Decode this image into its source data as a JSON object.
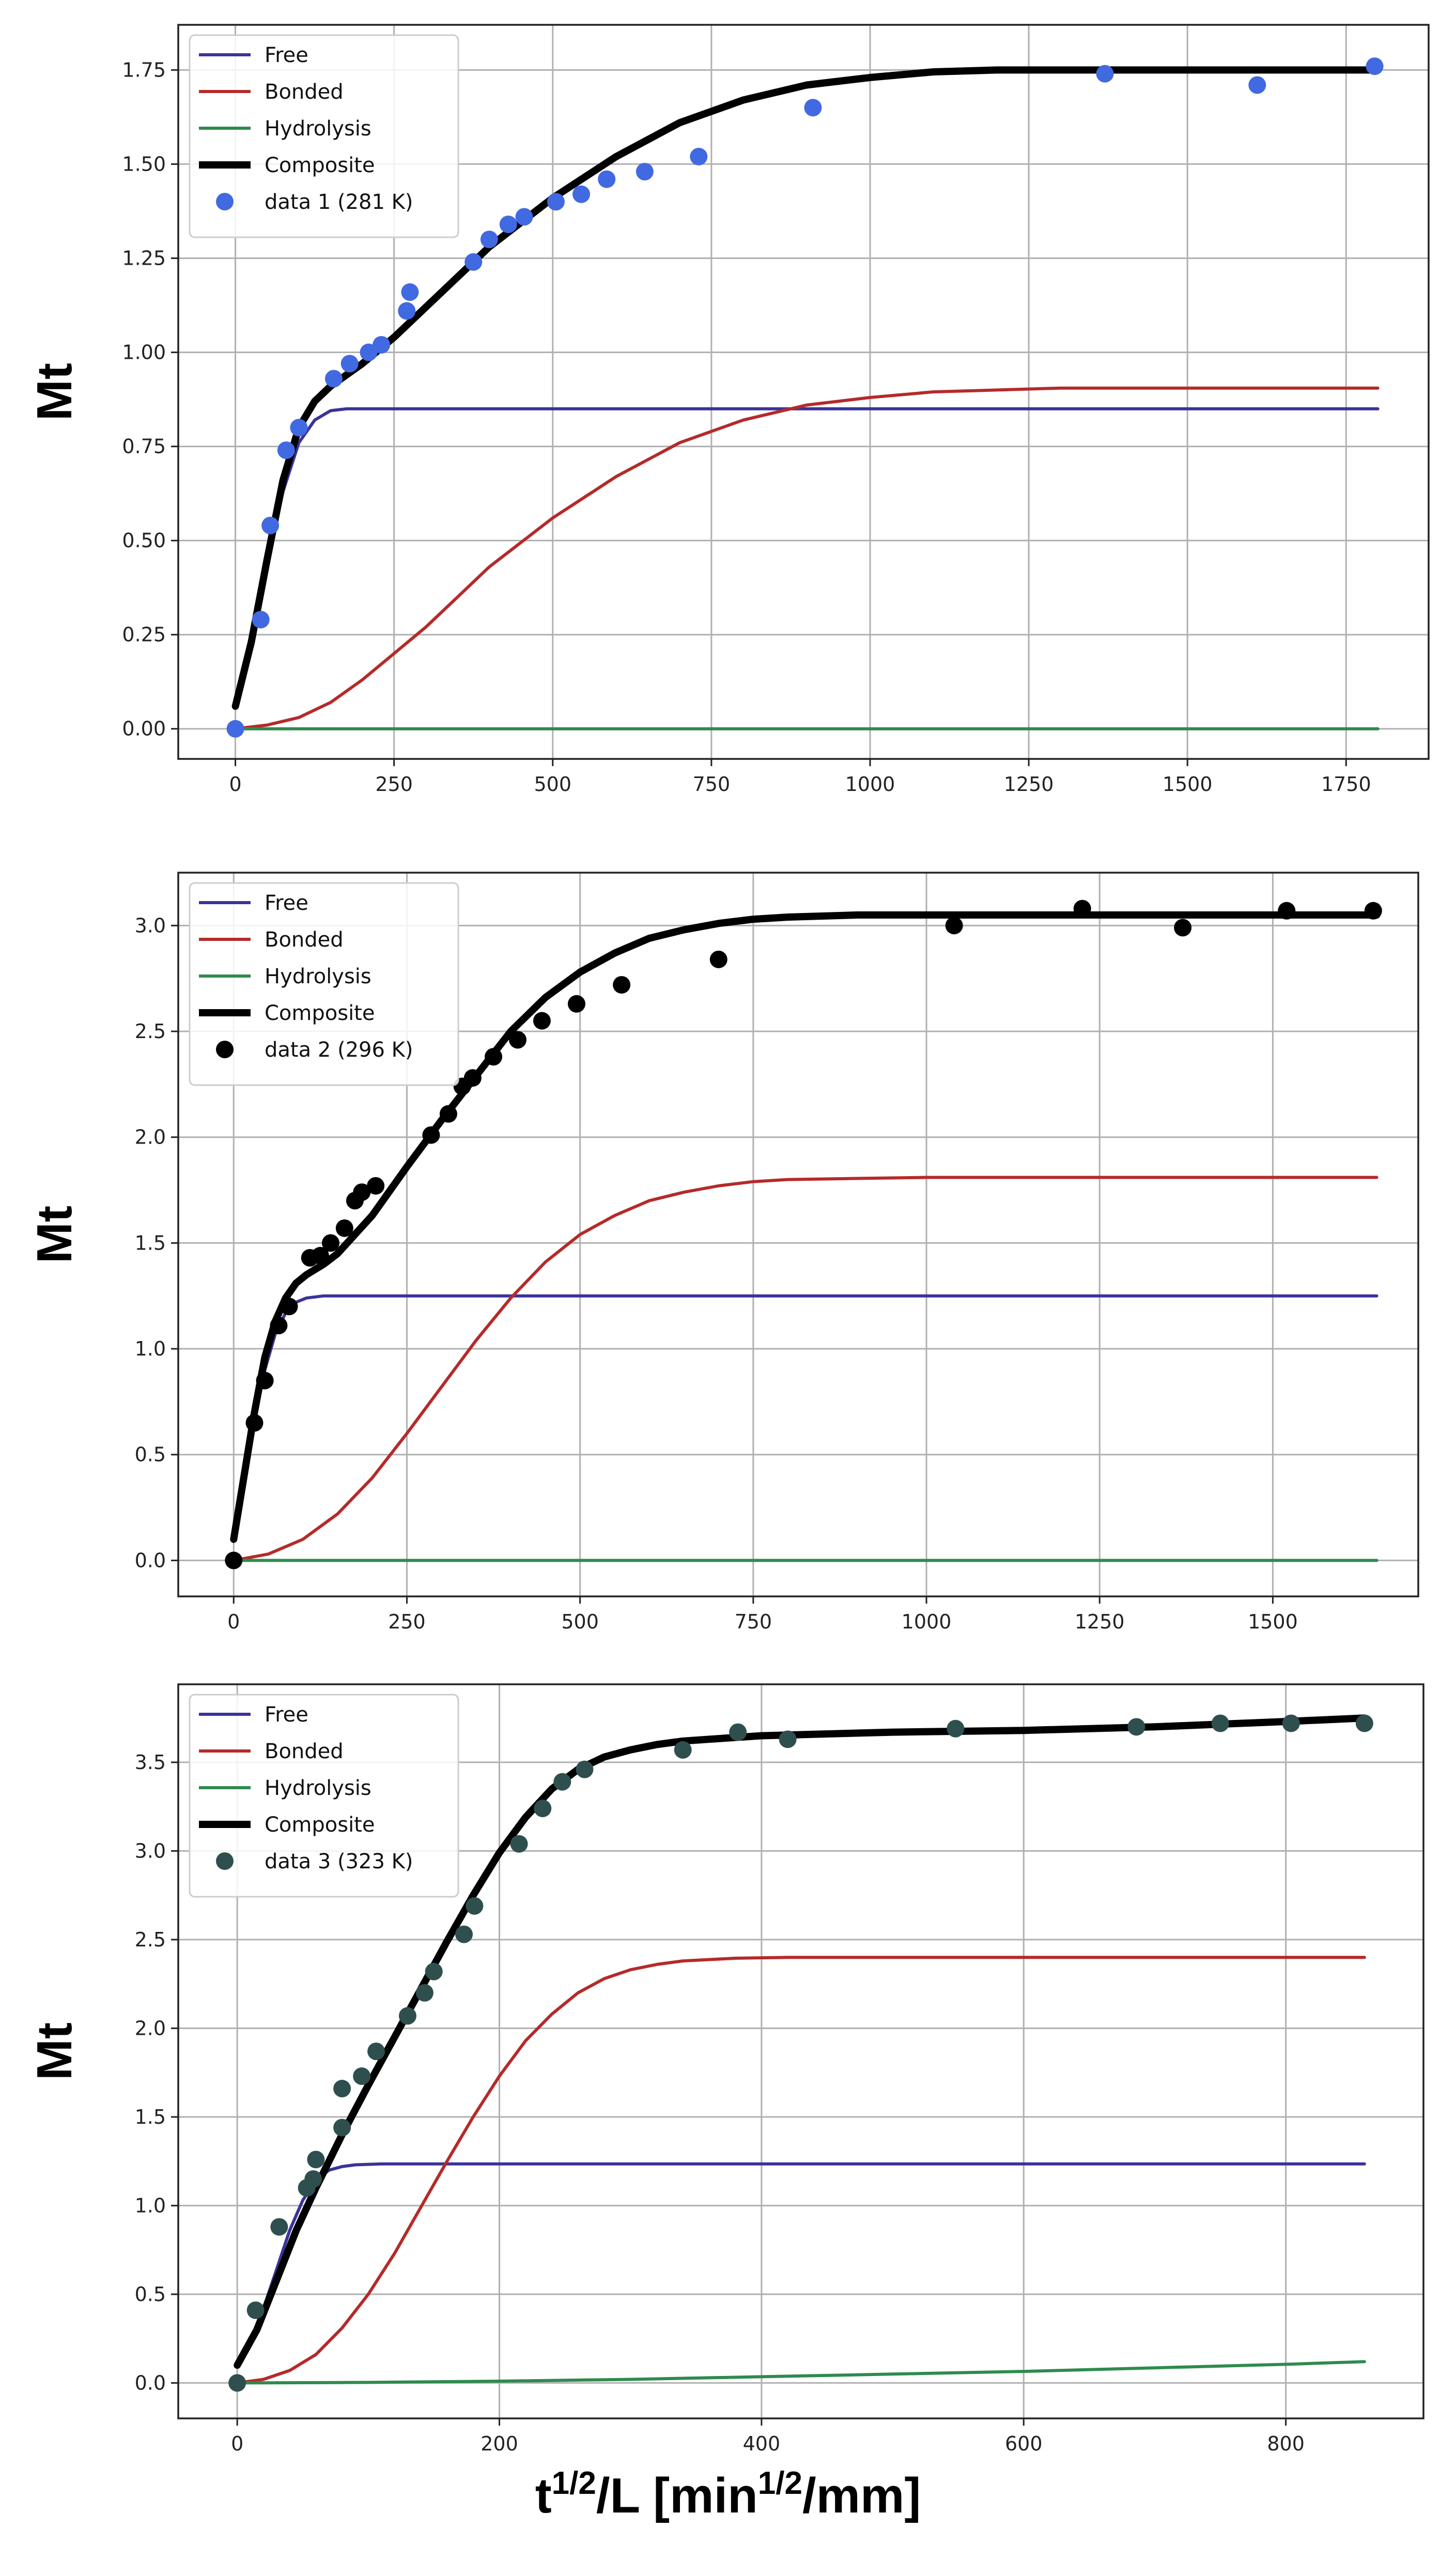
{
  "figure": {
    "x_label": {
      "base": "t",
      "sup1": "1/2",
      "mid": "/L [min",
      "sup2": "1/2",
      "end": "/mm]"
    }
  },
  "colors": {
    "free": "#3b3399",
    "bonded": "#b52a2a",
    "hydrolysis": "#2e8a4e",
    "composite": "#000000"
  },
  "chart_data": [
    {
      "type": "line",
      "ylabel": "Mt",
      "xlim": [
        -90,
        1880
      ],
      "ylim": [
        -0.08,
        1.87
      ],
      "xticks": [
        0,
        250,
        500,
        750,
        1000,
        1250,
        1500,
        1750
      ],
      "yticks": [
        0.0,
        0.25,
        0.5,
        0.75,
        1.0,
        1.25,
        1.5,
        1.75
      ],
      "ytick_decimals": 2,
      "legend": [
        "Free",
        "Bonded",
        "Hydrolysis",
        "Composite",
        "data 1 (281 K)"
      ],
      "legend_position": "top-left",
      "marker_color": "#4169e1",
      "series": [
        {
          "name": "Free",
          "x": [
            0,
            25,
            50,
            75,
            100,
            125,
            150,
            175,
            200,
            300,
            500,
            1000,
            1500,
            1800
          ],
          "y": [
            0.06,
            0.22,
            0.44,
            0.63,
            0.76,
            0.82,
            0.845,
            0.85,
            0.85,
            0.85,
            0.85,
            0.85,
            0.85,
            0.85
          ]
        },
        {
          "name": "Bonded",
          "x": [
            0,
            50,
            100,
            150,
            200,
            250,
            300,
            350,
            400,
            500,
            600,
            700,
            800,
            900,
            1000,
            1100,
            1200,
            1300,
            1500,
            1800
          ],
          "y": [
            0.0,
            0.01,
            0.03,
            0.07,
            0.13,
            0.2,
            0.27,
            0.35,
            0.43,
            0.56,
            0.67,
            0.76,
            0.82,
            0.86,
            0.88,
            0.895,
            0.9,
            0.905,
            0.905,
            0.905
          ]
        },
        {
          "name": "Hydrolysis",
          "x": [
            0,
            1800
          ],
          "y": [
            0.0,
            0.0
          ]
        },
        {
          "name": "Composite",
          "x": [
            0,
            25,
            50,
            75,
            100,
            125,
            150,
            200,
            250,
            300,
            350,
            400,
            500,
            600,
            700,
            800,
            900,
            1000,
            1100,
            1200,
            1300,
            1500,
            1800
          ],
          "y": [
            0.06,
            0.23,
            0.45,
            0.66,
            0.8,
            0.87,
            0.91,
            0.97,
            1.04,
            1.12,
            1.2,
            1.28,
            1.41,
            1.52,
            1.61,
            1.67,
            1.71,
            1.73,
            1.745,
            1.75,
            1.75,
            1.75,
            1.75
          ]
        },
        {
          "name": "data 1 (281 K)",
          "kind": "scatter",
          "x": [
            0,
            40,
            55,
            80,
            100,
            155,
            180,
            210,
            230,
            270,
            275,
            375,
            400,
            430,
            455,
            505,
            545,
            585,
            645,
            730,
            910,
            1370,
            1610,
            1795
          ],
          "y": [
            0.0,
            0.29,
            0.54,
            0.74,
            0.8,
            0.93,
            0.97,
            1.0,
            1.02,
            1.11,
            1.16,
            1.24,
            1.3,
            1.34,
            1.36,
            1.4,
            1.42,
            1.46,
            1.48,
            1.52,
            1.65,
            1.74,
            1.71,
            1.76
          ]
        }
      ]
    },
    {
      "type": "line",
      "ylabel": "Mt",
      "xlim": [
        -80,
        1710
      ],
      "ylim": [
        -0.17,
        3.25
      ],
      "xticks": [
        0,
        250,
        500,
        750,
        1000,
        1250,
        1500
      ],
      "yticks": [
        0.0,
        0.5,
        1.0,
        1.5,
        2.0,
        2.5,
        3.0
      ],
      "ytick_decimals": 1,
      "legend": [
        "Free",
        "Bonded",
        "Hydrolysis",
        "Composite",
        "data 2 (296 K)"
      ],
      "legend_position": "top-left",
      "marker_color": "#000000",
      "series": [
        {
          "name": "Free",
          "x": [
            0,
            15,
            30,
            45,
            60,
            75,
            90,
            105,
            130,
            200,
            500,
            1000,
            1650
          ],
          "y": [
            0.1,
            0.38,
            0.66,
            0.9,
            1.07,
            1.17,
            1.22,
            1.24,
            1.25,
            1.25,
            1.25,
            1.25,
            1.25
          ]
        },
        {
          "name": "Bonded",
          "x": [
            0,
            50,
            100,
            150,
            200,
            250,
            300,
            350,
            400,
            450,
            500,
            550,
            600,
            650,
            700,
            750,
            800,
            900,
            1000,
            1200,
            1650
          ],
          "y": [
            0.0,
            0.03,
            0.1,
            0.22,
            0.39,
            0.6,
            0.82,
            1.04,
            1.24,
            1.41,
            1.54,
            1.63,
            1.7,
            1.74,
            1.77,
            1.79,
            1.8,
            1.805,
            1.81,
            1.81,
            1.81
          ]
        },
        {
          "name": "Hydrolysis",
          "x": [
            0,
            1650
          ],
          "y": [
            0.0,
            0.0
          ]
        },
        {
          "name": "Composite",
          "x": [
            0,
            15,
            30,
            45,
            60,
            75,
            90,
            105,
            130,
            150,
            200,
            250,
            300,
            350,
            400,
            450,
            500,
            550,
            600,
            650,
            700,
            750,
            800,
            900,
            1000,
            1200,
            1650
          ],
          "y": [
            0.1,
            0.4,
            0.7,
            0.96,
            1.13,
            1.24,
            1.31,
            1.35,
            1.4,
            1.45,
            1.63,
            1.86,
            2.08,
            2.29,
            2.5,
            2.66,
            2.78,
            2.87,
            2.94,
            2.98,
            3.01,
            3.03,
            3.04,
            3.05,
            3.05,
            3.05,
            3.05
          ]
        },
        {
          "name": "data 2 (296 K)",
          "kind": "scatter",
          "x": [
            0,
            30,
            45,
            65,
            80,
            110,
            125,
            140,
            160,
            175,
            185,
            205,
            285,
            310,
            330,
            345,
            375,
            410,
            445,
            495,
            560,
            700,
            1040,
            1225,
            1370,
            1520,
            1645
          ],
          "y": [
            0.0,
            0.65,
            0.85,
            1.11,
            1.2,
            1.43,
            1.44,
            1.5,
            1.57,
            1.7,
            1.74,
            1.77,
            2.01,
            2.11,
            2.24,
            2.28,
            2.38,
            2.46,
            2.55,
            2.63,
            2.72,
            2.84,
            3.0,
            3.08,
            2.99,
            3.07,
            3.07
          ]
        }
      ]
    },
    {
      "type": "line",
      "ylabel": "Mt",
      "xlim": [
        -45,
        905
      ],
      "ylim": [
        -0.2,
        3.94
      ],
      "xticks": [
        0,
        200,
        400,
        600,
        800
      ],
      "yticks": [
        0.0,
        0.5,
        1.0,
        1.5,
        2.0,
        2.5,
        3.0,
        3.5
      ],
      "ytick_decimals": 1,
      "legend": [
        "Free",
        "Bonded",
        "Hydrolysis",
        "Composite",
        "data 3 (323 K)"
      ],
      "legend_position": "top-left",
      "marker_color": "#2f4f4f",
      "series": [
        {
          "name": "Free",
          "x": [
            0,
            10,
            20,
            30,
            40,
            50,
            60,
            70,
            80,
            90,
            110,
            150,
            300,
            600,
            860
          ],
          "y": [
            0.1,
            0.22,
            0.42,
            0.64,
            0.86,
            1.03,
            1.14,
            1.2,
            1.22,
            1.23,
            1.235,
            1.235,
            1.235,
            1.235,
            1.235
          ]
        },
        {
          "name": "Bonded",
          "x": [
            0,
            20,
            40,
            60,
            80,
            100,
            120,
            140,
            160,
            180,
            200,
            220,
            240,
            260,
            280,
            300,
            320,
            340,
            380,
            420,
            500,
            860
          ],
          "y": [
            0.0,
            0.02,
            0.07,
            0.16,
            0.31,
            0.5,
            0.73,
            0.99,
            1.25,
            1.5,
            1.73,
            1.93,
            2.08,
            2.2,
            2.28,
            2.33,
            2.36,
            2.38,
            2.395,
            2.4,
            2.4,
            2.4
          ]
        },
        {
          "name": "Hydrolysis",
          "x": [
            0,
            100,
            200,
            300,
            400,
            500,
            600,
            700,
            800,
            860
          ],
          "y": [
            0.0,
            0.003,
            0.01,
            0.02,
            0.035,
            0.05,
            0.065,
            0.085,
            0.105,
            0.12
          ]
        },
        {
          "name": "Composite",
          "x": [
            0,
            15,
            30,
            45,
            60,
            80,
            100,
            120,
            140,
            160,
            180,
            200,
            220,
            240,
            260,
            280,
            300,
            320,
            340,
            360,
            380,
            400,
            450,
            500,
            600,
            700,
            800,
            860
          ],
          "y": [
            0.1,
            0.3,
            0.58,
            0.86,
            1.1,
            1.4,
            1.68,
            1.95,
            2.22,
            2.49,
            2.75,
            2.99,
            3.19,
            3.35,
            3.46,
            3.53,
            3.57,
            3.6,
            3.62,
            3.63,
            3.64,
            3.65,
            3.66,
            3.67,
            3.68,
            3.7,
            3.73,
            3.75
          ]
        },
        {
          "name": "data 3 (323 K)",
          "kind": "scatter",
          "x": [
            0,
            14,
            32,
            53,
            58,
            60,
            80,
            80,
            95,
            106,
            130,
            143,
            150,
            173,
            181,
            215,
            233,
            248,
            265,
            340,
            382,
            420,
            548,
            686,
            750,
            804,
            860
          ],
          "y": [
            0.0,
            0.41,
            0.88,
            1.1,
            1.15,
            1.26,
            1.44,
            1.66,
            1.73,
            1.87,
            2.07,
            2.2,
            2.32,
            2.53,
            2.69,
            3.04,
            3.24,
            3.39,
            3.46,
            3.57,
            3.67,
            3.63,
            3.69,
            3.7,
            3.72,
            3.72,
            3.72
          ]
        }
      ]
    }
  ]
}
